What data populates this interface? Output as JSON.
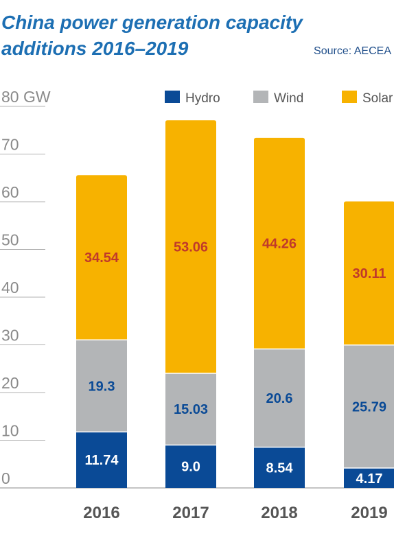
{
  "header": {
    "title": "China power generation capacity additions 2016–2019",
    "source": "Source: AECEA"
  },
  "colors": {
    "hydro": "#0a4a96",
    "wind": "#b3b5b7",
    "solar": "#f7b200",
    "label_on_solar": "#c0392b",
    "label_on_wind": "#0a4a96",
    "label_on_hydro": "#ffffff",
    "grid": "#b0b0b0"
  },
  "chart_data": {
    "type": "bar",
    "stacked": true,
    "title": "China power generation capacity additions 2016–2019",
    "ylabel": "",
    "y_unit_label": "GW",
    "ylim": [
      0,
      80
    ],
    "yticks": [
      0,
      10,
      20,
      30,
      40,
      50,
      60,
      70,
      80
    ],
    "grid": true,
    "legend_position": "top",
    "categories": [
      "2016",
      "2017",
      "2018",
      "2019"
    ],
    "series": [
      {
        "name": "Hydro",
        "values": [
          11.74,
          9.0,
          8.54,
          4.17
        ],
        "value_labels": [
          "11.74",
          "9.0",
          "8.54",
          "4.17"
        ]
      },
      {
        "name": "Wind",
        "values": [
          19.3,
          15.03,
          20.6,
          25.79
        ],
        "value_labels": [
          "19.3",
          "15.03",
          "20.6",
          "25.79"
        ]
      },
      {
        "name": "Solar",
        "values": [
          34.54,
          53.06,
          44.26,
          30.11
        ],
        "value_labels": [
          "34.54",
          "53.06",
          "44.26",
          "30.11"
        ]
      }
    ]
  }
}
